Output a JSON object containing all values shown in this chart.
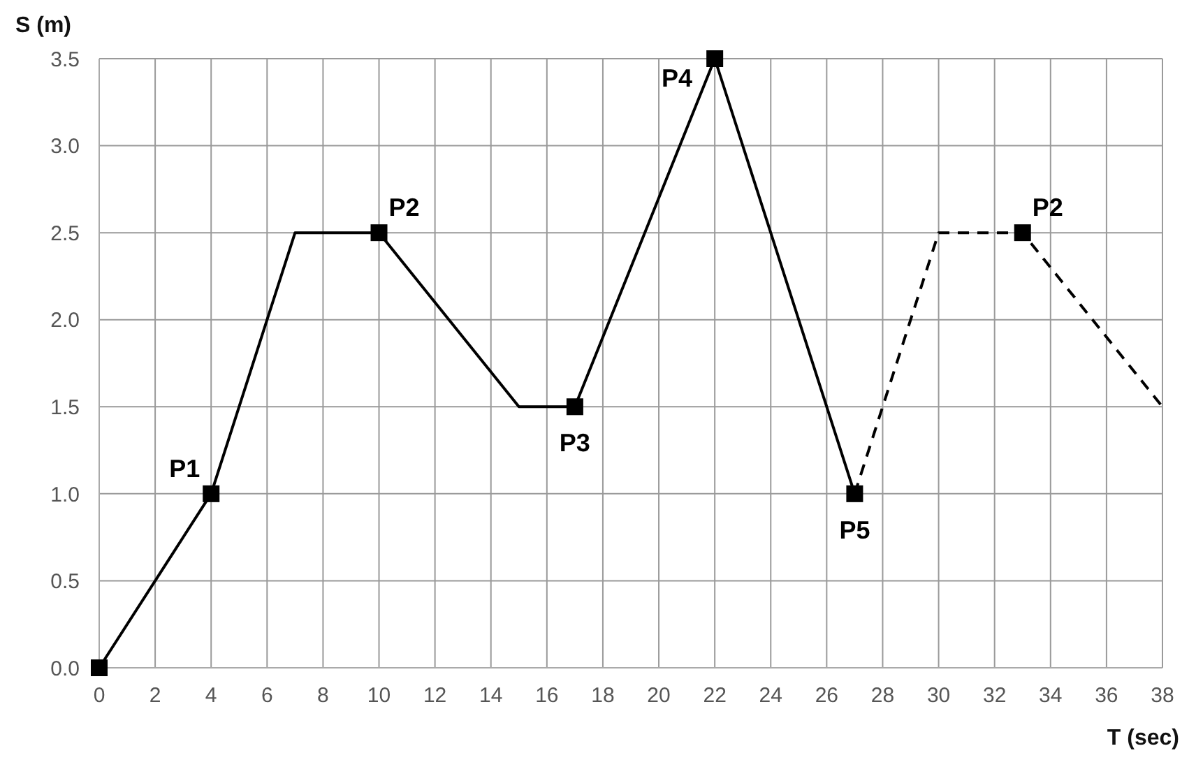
{
  "chart_data": {
    "type": "line",
    "xlabel": "T (sec)",
    "ylabel": "S (m)",
    "xlim": [
      0,
      38
    ],
    "xticks": [
      0,
      2,
      4,
      6,
      8,
      10,
      12,
      14,
      16,
      18,
      20,
      22,
      24,
      26,
      28,
      30,
      32,
      34,
      36,
      38
    ],
    "ylim": [
      0,
      3.5
    ],
    "yticks": [
      {
        "value": 0,
        "label": "0.0"
      },
      0.5,
      {
        "value": 1,
        "label": "1.0"
      },
      1.5,
      {
        "value": 2,
        "label": "2.0"
      },
      2.5,
      {
        "value": 3,
        "label": "3.0"
      },
      3.5
    ],
    "grid": true,
    "series": [
      {
        "color": "#000000",
        "line_style": "solid",
        "marker": "none",
        "x": [
          0,
          4,
          7,
          10,
          15,
          17,
          22,
          27
        ],
        "values": [
          0,
          1,
          2.5,
          2.5,
          1.5,
          1.5,
          3.5,
          1
        ]
      },
      {
        "color": "#000000",
        "line_style": "dashed",
        "marker": "none",
        "x": [
          27,
          30,
          33,
          38
        ],
        "values": [
          1,
          2.5,
          2.5,
          1.5
        ]
      },
      {
        "type": "scatter",
        "color": "#000000",
        "marker": "square",
        "x": [
          0,
          4,
          10,
          17,
          22,
          27,
          33
        ],
        "values": [
          0,
          1,
          2.5,
          1.5,
          3.5,
          1,
          2.5
        ]
      }
    ],
    "annotations": [
      {
        "text": "P1",
        "x": 4,
        "y": 1
      },
      {
        "text": "P2",
        "x": 10,
        "y": 2.5
      },
      {
        "text": "P3",
        "x": 17,
        "y": 1.5
      },
      {
        "text": "P4",
        "x": 22,
        "y": 3.5
      },
      {
        "text": "P5",
        "x": 27,
        "y": 1
      },
      {
        "text": "P2",
        "x": 33,
        "y": 2.5
      }
    ]
  }
}
